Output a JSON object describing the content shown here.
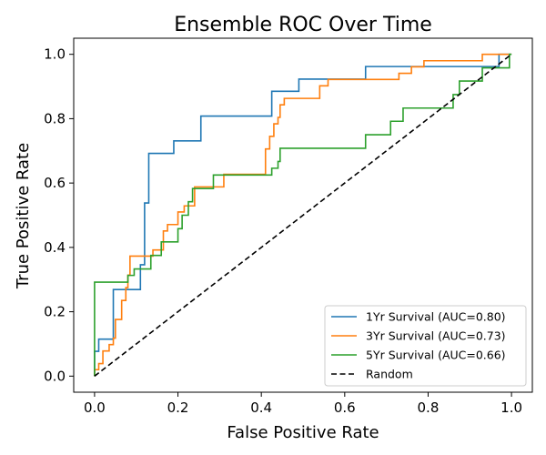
{
  "chart_data": {
    "type": "line",
    "title": "Ensemble ROC Over Time",
    "xlabel": "False Positive Rate",
    "ylabel": "True Positive Rate",
    "xlim": [
      -0.05,
      1.05
    ],
    "ylim": [
      -0.05,
      1.05
    ],
    "xticks": [
      "0.0",
      "0.2",
      "0.4",
      "0.6",
      "0.8",
      "1.0"
    ],
    "yticks": [
      "0.0",
      "0.2",
      "0.4",
      "0.6",
      "0.8",
      "1.0"
    ],
    "grid": false,
    "legend_position": "lower-right",
    "series": [
      {
        "name": "1Yr Survival (AUC=0.80)",
        "color": "#1f77b4",
        "style": "solid",
        "x": [
          0.0,
          0.0,
          0.01,
          0.01,
          0.045,
          0.045,
          0.11,
          0.11,
          0.12,
          0.12,
          0.13,
          0.13,
          0.19,
          0.19,
          0.255,
          0.255,
          0.425,
          0.425,
          0.49,
          0.49,
          0.65,
          0.65,
          0.97,
          0.97,
          1.0,
          1.0
        ],
        "y": [
          0.0,
          0.077,
          0.077,
          0.115,
          0.115,
          0.269,
          0.269,
          0.346,
          0.346,
          0.538,
          0.538,
          0.692,
          0.692,
          0.731,
          0.731,
          0.808,
          0.808,
          0.885,
          0.885,
          0.923,
          0.923,
          0.962,
          0.962,
          1.0,
          1.0,
          1.0
        ]
      },
      {
        "name": "3Yr Survival (AUC=0.73)",
        "color": "#ff7f0e",
        "style": "solid",
        "x": [
          0.0,
          0.0,
          0.01,
          0.01,
          0.02,
          0.02,
          0.035,
          0.035,
          0.045,
          0.045,
          0.05,
          0.05,
          0.065,
          0.065,
          0.075,
          0.075,
          0.08,
          0.08,
          0.085,
          0.085,
          0.14,
          0.14,
          0.165,
          0.165,
          0.175,
          0.175,
          0.2,
          0.2,
          0.215,
          0.215,
          0.24,
          0.24,
          0.31,
          0.31,
          0.345,
          0.345,
          0.41,
          0.41,
          0.42,
          0.42,
          0.43,
          0.43,
          0.44,
          0.44,
          0.445,
          0.445,
          0.455,
          0.455,
          0.54,
          0.54,
          0.56,
          0.56,
          0.73,
          0.73,
          0.76,
          0.76,
          0.79,
          0.79,
          0.93,
          0.93,
          1.0
        ],
        "y": [
          0.0,
          0.02,
          0.02,
          0.039,
          0.039,
          0.078,
          0.078,
          0.098,
          0.098,
          0.118,
          0.118,
          0.176,
          0.176,
          0.235,
          0.235,
          0.275,
          0.275,
          0.314,
          0.314,
          0.373,
          0.373,
          0.392,
          0.392,
          0.451,
          0.451,
          0.471,
          0.471,
          0.51,
          0.51,
          0.529,
          0.529,
          0.588,
          0.588,
          0.627,
          0.627,
          0.627,
          0.627,
          0.706,
          0.706,
          0.745,
          0.745,
          0.784,
          0.784,
          0.804,
          0.804,
          0.843,
          0.843,
          0.863,
          0.863,
          0.902,
          0.902,
          0.922,
          0.922,
          0.941,
          0.941,
          0.961,
          0.961,
          0.98,
          0.98,
          1.0,
          1.0
        ]
      },
      {
        "name": "5Yr Survival (AUC=0.66)",
        "color": "#2ca02c",
        "style": "solid",
        "x": [
          0.0,
          0.0,
          0.08,
          0.08,
          0.095,
          0.095,
          0.135,
          0.135,
          0.16,
          0.16,
          0.2,
          0.2,
          0.21,
          0.21,
          0.225,
          0.225,
          0.235,
          0.235,
          0.285,
          0.285,
          0.425,
          0.425,
          0.44,
          0.44,
          0.445,
          0.445,
          0.65,
          0.65,
          0.71,
          0.71,
          0.74,
          0.74,
          0.86,
          0.86,
          0.875,
          0.875,
          0.93,
          0.93,
          0.995,
          0.995,
          1.0
        ],
        "y": [
          0.0,
          0.292,
          0.292,
          0.313,
          0.313,
          0.333,
          0.333,
          0.375,
          0.375,
          0.417,
          0.417,
          0.458,
          0.458,
          0.5,
          0.5,
          0.542,
          0.542,
          0.583,
          0.583,
          0.625,
          0.625,
          0.646,
          0.646,
          0.667,
          0.667,
          0.708,
          0.708,
          0.75,
          0.75,
          0.792,
          0.792,
          0.833,
          0.833,
          0.875,
          0.875,
          0.917,
          0.917,
          0.958,
          0.958,
          1.0,
          1.0
        ]
      },
      {
        "name": "Random",
        "color": "#000000",
        "style": "dashed",
        "x": [
          0.0,
          1.0
        ],
        "y": [
          0.0,
          1.0
        ]
      }
    ]
  }
}
